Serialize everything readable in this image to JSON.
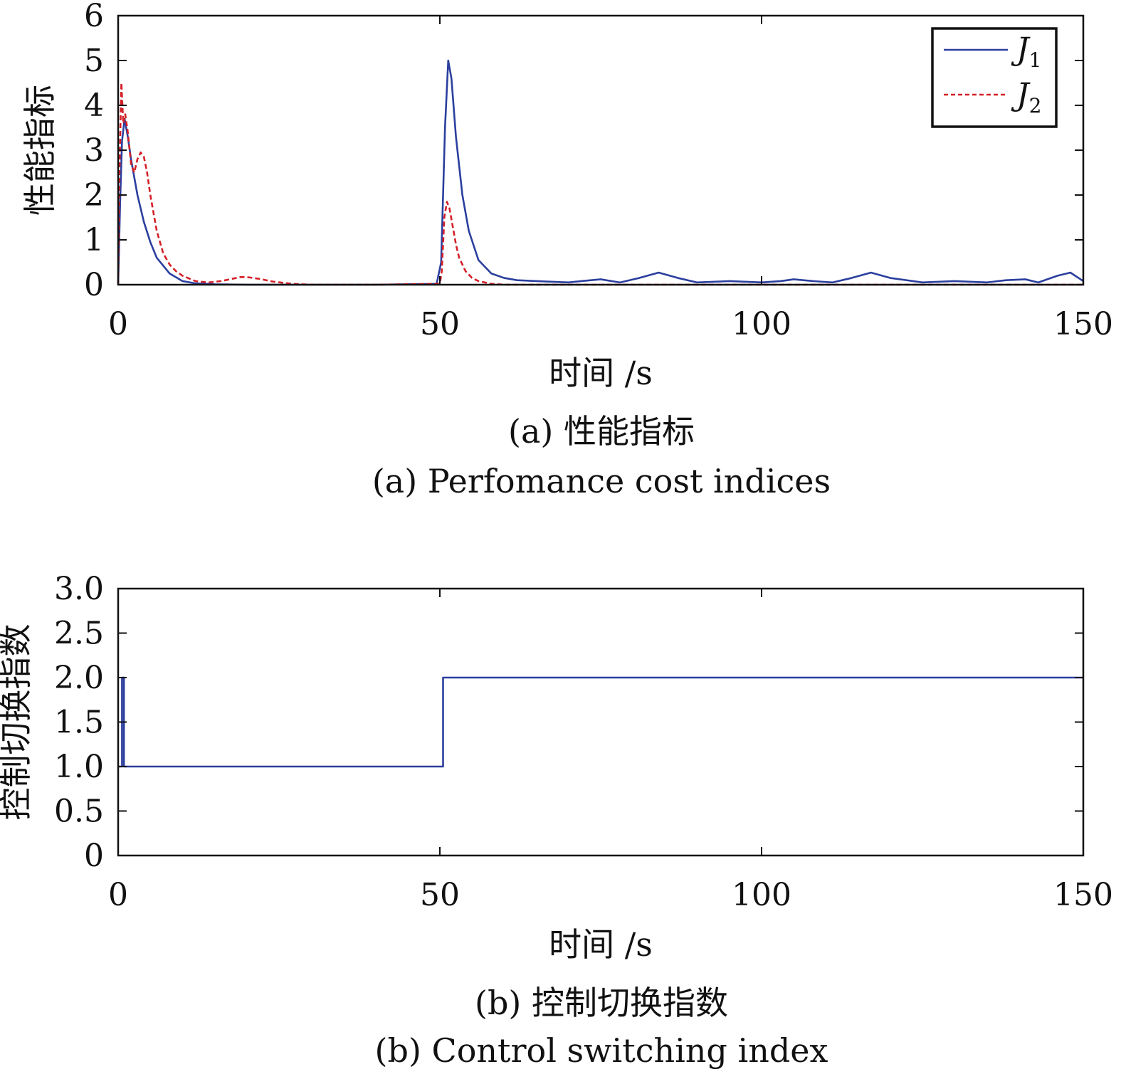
{
  "colors": {
    "J1": "#2b3f9e",
    "J2": "#d42028",
    "axis": "#111111"
  },
  "captions": {
    "a_cn": "(a) 性能指标",
    "a_en": "(a) Perfomance cost indices",
    "b_cn": "(b) 控制切换指数",
    "b_en": "(b) Control switching index"
  },
  "chart_data": [
    {
      "type": "line",
      "xlabel": "时间 /s",
      "ylabel": "性能指标",
      "xlim": [
        0,
        150
      ],
      "ylim": [
        0,
        6
      ],
      "x_ticks": [
        "0",
        "50",
        "100",
        "150"
      ],
      "y_ticks": [
        "0",
        "1",
        "2",
        "3",
        "4",
        "5",
        "6"
      ],
      "grid": false,
      "legend": {
        "position": "top-right",
        "entries": [
          {
            "name": "J",
            "sub": "1"
          },
          {
            "name": "J",
            "sub": "2"
          }
        ]
      },
      "series": [
        {
          "name": "J1",
          "style": "solid",
          "x": [
            0,
            0.3,
            0.6,
            1.0,
            1.5,
            2,
            3,
            4,
            5,
            6,
            8,
            10,
            12,
            15,
            20,
            30,
            40,
            49.5,
            50.2,
            50.8,
            51.3,
            51.8,
            52.5,
            53.5,
            54.5,
            56,
            58,
            60,
            62,
            65,
            70,
            72,
            75,
            78,
            81,
            84,
            87,
            90,
            95,
            100,
            103,
            105,
            108,
            111,
            114,
            117,
            120,
            125,
            130,
            135,
            138,
            141,
            143,
            146,
            148,
            150
          ],
          "y": [
            0,
            1.8,
            3.2,
            3.7,
            3.3,
            2.8,
            2.0,
            1.4,
            0.95,
            0.6,
            0.25,
            0.08,
            0.03,
            0.01,
            0,
            0,
            0,
            0.02,
            0.5,
            3.5,
            5.0,
            4.6,
            3.3,
            2.0,
            1.2,
            0.55,
            0.25,
            0.15,
            0.1,
            0.08,
            0.05,
            0.08,
            0.12,
            0.05,
            0.15,
            0.27,
            0.15,
            0.05,
            0.08,
            0.05,
            0.08,
            0.12,
            0.08,
            0.05,
            0.15,
            0.27,
            0.15,
            0.05,
            0.08,
            0.05,
            0.1,
            0.12,
            0.05,
            0.2,
            0.27,
            0.08
          ]
        },
        {
          "name": "J2",
          "style": "dashed",
          "x": [
            0,
            0.2,
            0.5,
            0.8,
            1.1,
            1.5,
            2,
            2.5,
            3,
            3.5,
            4,
            4.5,
            5,
            6,
            7,
            8,
            9,
            10,
            12,
            14,
            16,
            18,
            19,
            20,
            22,
            24,
            27,
            30,
            40,
            50,
            50.3,
            50.7,
            51.1,
            51.5,
            52,
            52.5,
            53,
            54,
            55,
            56,
            58,
            60,
            70,
            100,
            150
          ],
          "y": [
            0,
            2.5,
            4.5,
            3.6,
            3.8,
            3.4,
            2.7,
            2.5,
            2.8,
            2.95,
            2.85,
            2.5,
            2.0,
            1.2,
            0.7,
            0.45,
            0.3,
            0.2,
            0.08,
            0.05,
            0.08,
            0.14,
            0.17,
            0.17,
            0.13,
            0.07,
            0.02,
            0,
            0,
            0.02,
            0.3,
            1.5,
            1.85,
            1.7,
            1.3,
            0.9,
            0.6,
            0.3,
            0.15,
            0.08,
            0.02,
            0,
            0,
            0,
            0
          ]
        }
      ]
    },
    {
      "type": "line",
      "xlabel": "时间 /s",
      "ylabel": "控制切换指数",
      "xlim": [
        0,
        150
      ],
      "ylim": [
        0,
        3.0
      ],
      "x_ticks": [
        "0",
        "50",
        "100",
        "150"
      ],
      "y_ticks": [
        "0",
        "0.5",
        "1.0",
        "1.5",
        "2.0",
        "2.5",
        "3.0"
      ],
      "grid": false,
      "series": [
        {
          "name": "switching index",
          "style": "solid",
          "x": [
            0,
            0.6,
            0.6,
            0.9,
            0.9,
            1.1,
            1.1,
            50.5,
            50.5,
            150
          ],
          "y": [
            1,
            1,
            2,
            2,
            1,
            1,
            1,
            1,
            2,
            2
          ]
        }
      ]
    }
  ]
}
